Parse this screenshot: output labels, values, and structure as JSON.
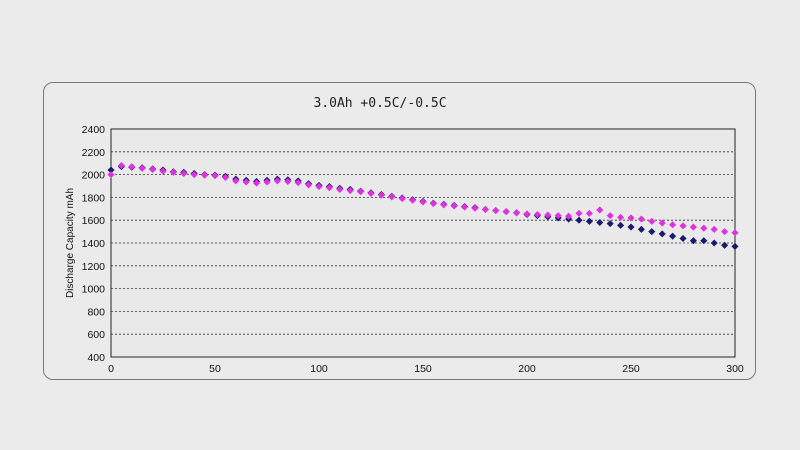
{
  "chart_data": {
    "type": "scatter",
    "title": "3.0Ah +0.5C/-0.5C",
    "xlabel": "",
    "ylabel": "Discharge Capacity  mAh",
    "xlim": [
      0,
      300
    ],
    "ylim": [
      400,
      2400
    ],
    "xticks": [
      0,
      50,
      100,
      150,
      200,
      250,
      300
    ],
    "yticks": [
      400,
      600,
      800,
      1000,
      1200,
      1400,
      1600,
      1800,
      2000,
      2200,
      2400
    ],
    "grid": "horizontal-dashed",
    "legend": "none",
    "series": [
      {
        "color": "#1a1a6e",
        "x": [
          0,
          5,
          10,
          15,
          20,
          25,
          30,
          35,
          40,
          45,
          50,
          55,
          60,
          65,
          70,
          75,
          80,
          85,
          90,
          95,
          100,
          105,
          110,
          115,
          120,
          125,
          130,
          135,
          140,
          145,
          150,
          155,
          160,
          165,
          170,
          175,
          180,
          185,
          190,
          195,
          200,
          205,
          210,
          215,
          220,
          225,
          230,
          235,
          240,
          245,
          250,
          255,
          260,
          265,
          270,
          275,
          280,
          285,
          290,
          295,
          300
        ],
        "y": [
          2040,
          2070,
          2065,
          2060,
          2050,
          2040,
          2025,
          2020,
          2010,
          2000,
          1995,
          1985,
          1960,
          1950,
          1940,
          1950,
          1960,
          1955,
          1945,
          1920,
          1905,
          1895,
          1880,
          1870,
          1855,
          1840,
          1825,
          1810,
          1795,
          1780,
          1765,
          1750,
          1740,
          1730,
          1720,
          1710,
          1695,
          1685,
          1675,
          1665,
          1650,
          1640,
          1630,
          1620,
          1610,
          1600,
          1590,
          1580,
          1570,
          1555,
          1540,
          1520,
          1500,
          1480,
          1460,
          1440,
          1420,
          1420,
          1400,
          1380,
          1370
        ]
      },
      {
        "color": "#e030e0",
        "x": [
          0,
          5,
          10,
          15,
          20,
          25,
          30,
          35,
          40,
          45,
          50,
          55,
          60,
          65,
          70,
          75,
          80,
          85,
          90,
          95,
          100,
          105,
          110,
          115,
          120,
          125,
          130,
          135,
          140,
          145,
          150,
          155,
          160,
          165,
          170,
          175,
          180,
          185,
          190,
          195,
          200,
          205,
          210,
          215,
          220,
          225,
          230,
          235,
          240,
          245,
          250,
          255,
          260,
          265,
          270,
          275,
          280,
          285,
          290,
          295,
          300
        ],
        "y": [
          2000,
          2080,
          2070,
          2055,
          2045,
          2030,
          2020,
          2010,
          2000,
          1995,
          1990,
          1975,
          1945,
          1935,
          1925,
          1935,
          1945,
          1940,
          1930,
          1910,
          1895,
          1885,
          1870,
          1860,
          1850,
          1835,
          1820,
          1805,
          1790,
          1775,
          1760,
          1745,
          1735,
          1725,
          1715,
          1705,
          1695,
          1685,
          1675,
          1665,
          1655,
          1650,
          1645,
          1640,
          1635,
          1660,
          1660,
          1690,
          1640,
          1625,
          1620,
          1610,
          1590,
          1575,
          1560,
          1550,
          1540,
          1530,
          1520,
          1500,
          1490
        ]
      }
    ]
  }
}
